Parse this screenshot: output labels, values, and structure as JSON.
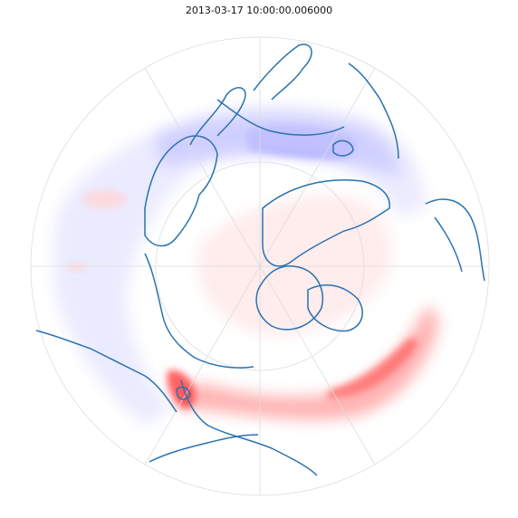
{
  "title": "2013-03-17 10:00:00.006000",
  "projection": "north-polar-stereographic",
  "colormap": "bwr",
  "colors": {
    "coastline": "#2a72b0",
    "grid": "#dddddd",
    "positive": "#ff0000",
    "negative": "#0000ff",
    "background": "#ffffff"
  },
  "gridlines": {
    "parallels_deg": [
      30,
      60
    ],
    "meridian_step_deg": 60
  }
}
